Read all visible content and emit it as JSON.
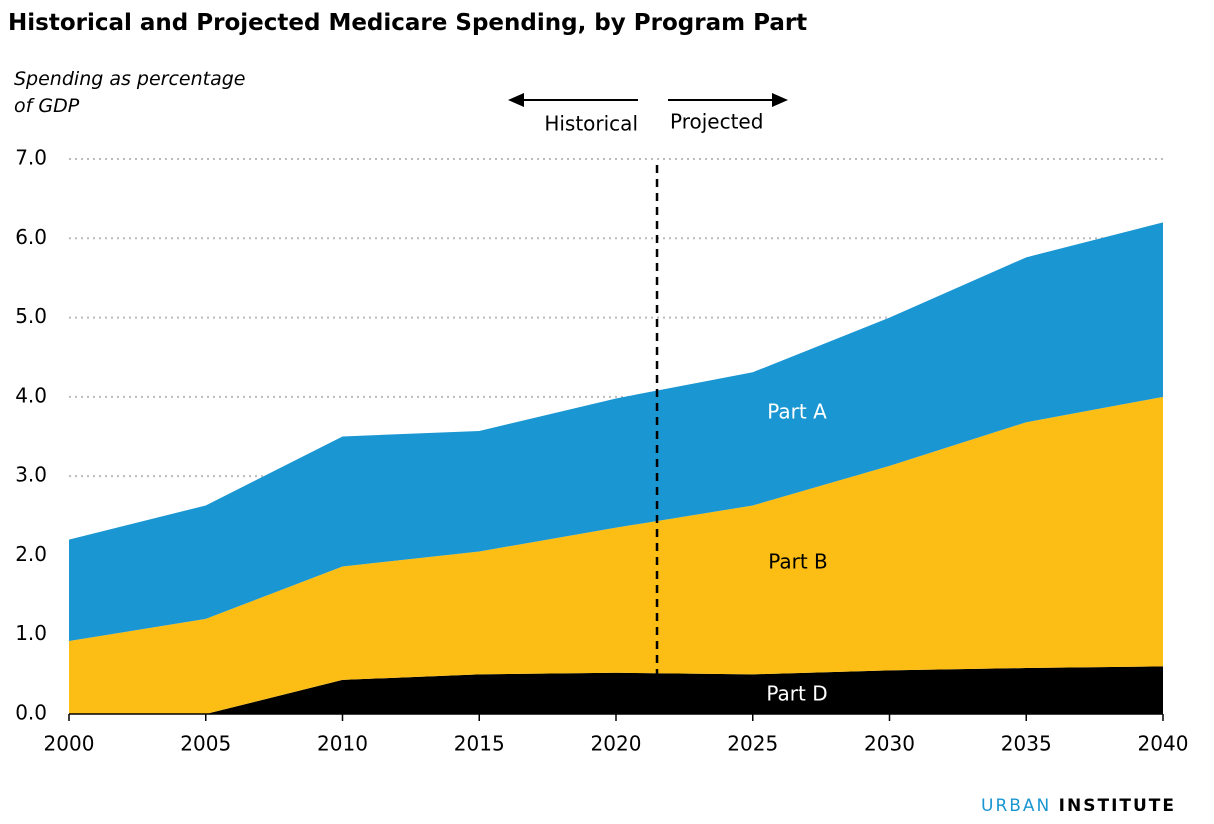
{
  "chart_data": {
    "type": "stacked_area",
    "title": "Historical and Projected Medicare Spending, by Program Part",
    "y_label": "Spending as percentage of GDP",
    "x": [
      2000,
      2005,
      2010,
      2015,
      2020,
      2025,
      2030,
      2035,
      2040
    ],
    "series": [
      {
        "name": "Part D",
        "color": "#000000",
        "values": [
          0,
          0,
          0.43,
          0.5,
          0.52,
          0.5,
          0.55,
          0.58,
          0.6
        ]
      },
      {
        "name": "Part B",
        "color": "#fcbe14",
        "values": [
          0.92,
          1.2,
          1.43,
          1.55,
          1.83,
          2.13,
          2.58,
          3.1,
          3.4
        ]
      },
      {
        "name": "Part A",
        "color": "#1a96d2",
        "values": [
          1.28,
          1.43,
          1.64,
          1.52,
          1.63,
          1.68,
          1.87,
          2.08,
          2.2
        ]
      }
    ],
    "xlim": [
      2000,
      2040
    ],
    "xticks": [
      2000,
      2005,
      2010,
      2015,
      2020,
      2025,
      2030,
      2035,
      2040
    ],
    "ylim": [
      0,
      7
    ],
    "yticks": [
      {
        "value": 0,
        "label": "0.0"
      },
      {
        "value": 1,
        "label": "1.0"
      },
      {
        "value": 2,
        "label": "2.0"
      },
      {
        "value": 3,
        "label": "3.0"
      },
      {
        "value": 4,
        "label": "4.0"
      },
      {
        "value": 5,
        "label": "5.0"
      },
      {
        "value": 6,
        "label": "6.0"
      },
      {
        "value": 7,
        "label": "7.0"
      }
    ],
    "grid": true,
    "divider_x": 2021.5,
    "divider_left_label": "Historical",
    "divider_right_label": "Projected"
  },
  "brand": {
    "first": "URBAN",
    "second": "INSTITUTE"
  }
}
